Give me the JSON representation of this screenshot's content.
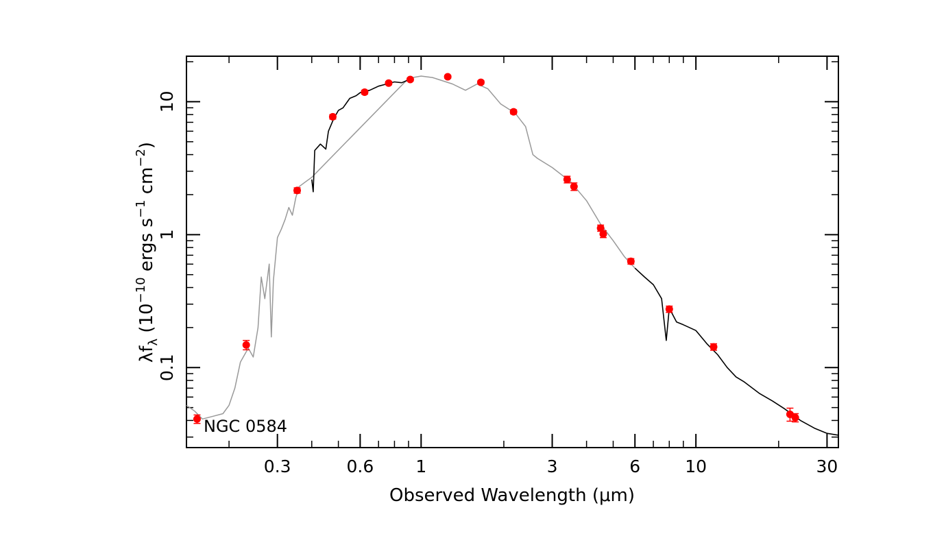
{
  "chart_data": {
    "type": "scatter",
    "xlabel": "Observed Wavelength (μm)",
    "ylabel_parts": {
      "symbol": "λf",
      "subscript": "λ",
      "open": " (10",
      "exp1": "−10",
      "mid": " ergs s",
      "exp2": "−1",
      "cm": " cm",
      "exp3": "−2",
      "close": ")"
    },
    "annotation": "NGC 0584",
    "x_scale": "log",
    "y_scale": "log",
    "xlim": [
      0.14,
      33
    ],
    "ylim": [
      0.025,
      22
    ],
    "x_ticks": [
      {
        "value": 0.3,
        "label": "0.3"
      },
      {
        "value": 0.6,
        "label": "0.6"
      },
      {
        "value": 1,
        "label": "1"
      },
      {
        "value": 3,
        "label": "3"
      },
      {
        "value": 6,
        "label": "6"
      },
      {
        "value": 10,
        "label": "10"
      },
      {
        "value": 30,
        "label": "30"
      }
    ],
    "y_ticks": [
      {
        "value": 0.1,
        "label": "0.1"
      },
      {
        "value": 1,
        "label": "1"
      },
      {
        "value": 10,
        "label": "10"
      }
    ],
    "grid": false,
    "colors": {
      "photometry": "#ff0000",
      "template": "#999999",
      "observed": "#000000",
      "axes": "#000000"
    },
    "series": [
      {
        "role": "photometry",
        "points": [
          {
            "x": 0.153,
            "y": 0.041,
            "err": 0.003
          },
          {
            "x": 0.231,
            "y": 0.148,
            "err": 0.012
          },
          {
            "x": 0.354,
            "y": 2.15,
            "err": 0.1
          },
          {
            "x": 0.477,
            "y": 7.7,
            "err": 0.3
          },
          {
            "x": 0.623,
            "y": 11.8,
            "err": 0.4
          },
          {
            "x": 0.762,
            "y": 13.8,
            "err": 0.4
          },
          {
            "x": 0.913,
            "y": 14.7,
            "err": 0.4
          },
          {
            "x": 1.25,
            "y": 15.4,
            "err": 0.4
          },
          {
            "x": 1.65,
            "y": 14.0,
            "err": 0.4
          },
          {
            "x": 2.17,
            "y": 8.4,
            "err": 0.3
          },
          {
            "x": 3.4,
            "y": 2.6,
            "err": 0.15
          },
          {
            "x": 3.6,
            "y": 2.3,
            "err": 0.15
          },
          {
            "x": 4.5,
            "y": 1.12,
            "err": 0.06
          },
          {
            "x": 4.6,
            "y": 1.01,
            "err": 0.06
          },
          {
            "x": 5.8,
            "y": 0.63,
            "err": 0.03
          },
          {
            "x": 8.0,
            "y": 0.275,
            "err": 0.015
          },
          {
            "x": 11.6,
            "y": 0.143,
            "err": 0.008
          },
          {
            "x": 22.0,
            "y": 0.0445,
            "err": 0.005
          },
          {
            "x": 23.0,
            "y": 0.042,
            "err": 0.003
          }
        ]
      },
      {
        "role": "template_spectrum",
        "points": [
          {
            "x": 0.14,
            "y": 0.052
          },
          {
            "x": 0.15,
            "y": 0.047
          },
          {
            "x": 0.16,
            "y": 0.041
          },
          {
            "x": 0.175,
            "y": 0.043
          },
          {
            "x": 0.19,
            "y": 0.045
          },
          {
            "x": 0.2,
            "y": 0.052
          },
          {
            "x": 0.21,
            "y": 0.07
          },
          {
            "x": 0.22,
            "y": 0.11
          },
          {
            "x": 0.235,
            "y": 0.14
          },
          {
            "x": 0.245,
            "y": 0.12
          },
          {
            "x": 0.255,
            "y": 0.2
          },
          {
            "x": 0.262,
            "y": 0.48
          },
          {
            "x": 0.27,
            "y": 0.33
          },
          {
            "x": 0.28,
            "y": 0.6
          },
          {
            "x": 0.285,
            "y": 0.17
          },
          {
            "x": 0.29,
            "y": 0.45
          },
          {
            "x": 0.3,
            "y": 0.95
          },
          {
            "x": 0.31,
            "y": 1.1
          },
          {
            "x": 0.32,
            "y": 1.3
          },
          {
            "x": 0.33,
            "y": 1.6
          },
          {
            "x": 0.34,
            "y": 1.4
          },
          {
            "x": 0.35,
            "y": 1.9
          },
          {
            "x": 0.36,
            "y": 2.3
          },
          {
            "x": 0.38,
            "y": 2.5
          },
          {
            "x": 0.4,
            "y": 2.7
          },
          {
            "x": 0.9,
            "y": 15.0
          },
          {
            "x": 1.0,
            "y": 15.6
          },
          {
            "x": 1.1,
            "y": 15.2
          },
          {
            "x": 1.3,
            "y": 13.6
          },
          {
            "x": 1.45,
            "y": 12.2
          },
          {
            "x": 1.6,
            "y": 13.6
          },
          {
            "x": 1.75,
            "y": 12.5
          },
          {
            "x": 1.95,
            "y": 9.6
          },
          {
            "x": 2.2,
            "y": 8.2
          },
          {
            "x": 2.4,
            "y": 6.5
          },
          {
            "x": 2.55,
            "y": 4.0
          },
          {
            "x": 2.65,
            "y": 3.75
          },
          {
            "x": 3.0,
            "y": 3.2
          },
          {
            "x": 3.5,
            "y": 2.5
          },
          {
            "x": 4.0,
            "y": 1.8
          },
          {
            "x": 4.5,
            "y": 1.2
          },
          {
            "x": 5.0,
            "y": 0.9
          },
          {
            "x": 5.5,
            "y": 0.68
          },
          {
            "x": 6.0,
            "y": 0.56
          }
        ]
      },
      {
        "role": "observed_spectrum",
        "segments": [
          [
            {
              "x": 0.4,
              "y": 2.6
            },
            {
              "x": 0.405,
              "y": 2.1
            },
            {
              "x": 0.41,
              "y": 4.3
            },
            {
              "x": 0.43,
              "y": 4.8
            },
            {
              "x": 0.45,
              "y": 4.4
            },
            {
              "x": 0.46,
              "y": 6.0
            },
            {
              "x": 0.48,
              "y": 7.4
            },
            {
              "x": 0.5,
              "y": 8.6
            },
            {
              "x": 0.52,
              "y": 9.0
            },
            {
              "x": 0.55,
              "y": 10.6
            },
            {
              "x": 0.58,
              "y": 11.1
            },
            {
              "x": 0.6,
              "y": 11.7
            },
            {
              "x": 0.65,
              "y": 12.2
            },
            {
              "x": 0.7,
              "y": 13.1
            },
            {
              "x": 0.75,
              "y": 13.6
            },
            {
              "x": 0.8,
              "y": 14.1
            },
            {
              "x": 0.85,
              "y": 13.9
            },
            {
              "x": 0.9,
              "y": 14.6
            }
          ],
          [
            {
              "x": 6.0,
              "y": 0.56
            },
            {
              "x": 6.5,
              "y": 0.48
            },
            {
              "x": 7.0,
              "y": 0.42
            },
            {
              "x": 7.5,
              "y": 0.33
            },
            {
              "x": 7.8,
              "y": 0.16
            },
            {
              "x": 8.0,
              "y": 0.28
            },
            {
              "x": 8.5,
              "y": 0.22
            },
            {
              "x": 9.0,
              "y": 0.21
            },
            {
              "x": 10.0,
              "y": 0.19
            },
            {
              "x": 11.0,
              "y": 0.15
            },
            {
              "x": 12.0,
              "y": 0.125
            },
            {
              "x": 13.0,
              "y": 0.1
            },
            {
              "x": 14.0,
              "y": 0.085
            },
            {
              "x": 15.0,
              "y": 0.078
            },
            {
              "x": 17.0,
              "y": 0.064
            },
            {
              "x": 19.0,
              "y": 0.056
            },
            {
              "x": 21.0,
              "y": 0.049
            },
            {
              "x": 24.0,
              "y": 0.04
            },
            {
              "x": 27.0,
              "y": 0.035
            },
            {
              "x": 30.0,
              "y": 0.032
            },
            {
              "x": 33.0,
              "y": 0.031
            }
          ]
        ]
      }
    ]
  }
}
